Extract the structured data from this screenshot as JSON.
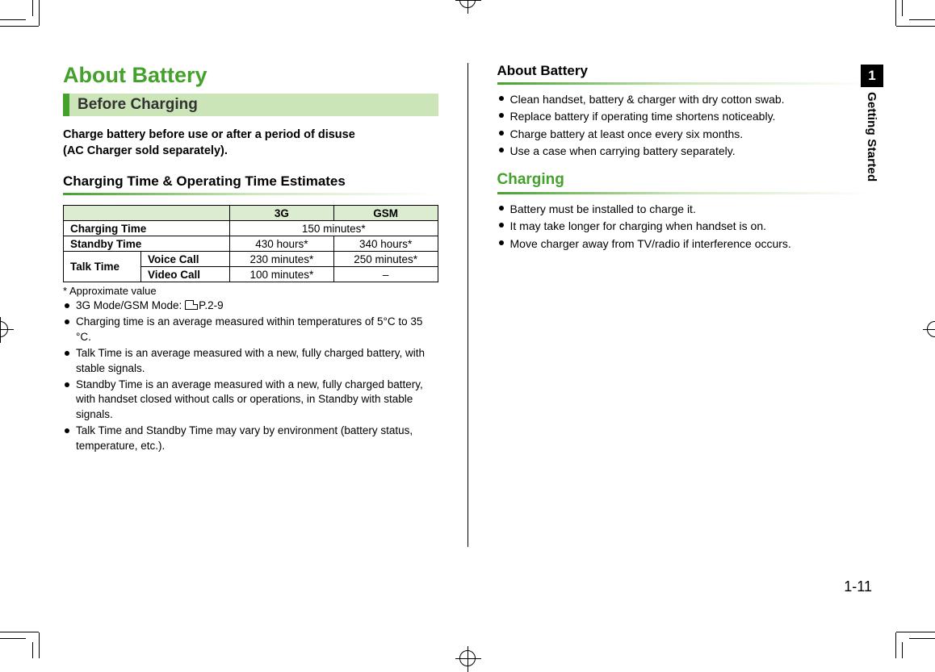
{
  "colors": {
    "accent": "#44a12b",
    "accent_light": "#cce5b8",
    "table_header_bg": "#dcecd0",
    "text": "#000000",
    "background": "#ffffff"
  },
  "sideTab": {
    "number": "1",
    "label": "Getting Started"
  },
  "pageNumber": "1-11",
  "left": {
    "mainTitle": "About Battery",
    "subHead": "Before Charging",
    "introLine1": "Charge battery before use or after a period of disuse",
    "introLine2": "(AC Charger sold separately).",
    "tableTitle": "Charging Time & Operating Time Estimates",
    "table": {
      "colHeaders": [
        "3G",
        "GSM"
      ],
      "rows": {
        "chargingTime": {
          "label": "Charging Time",
          "merged": "150 minutes*"
        },
        "standbyTime": {
          "label": "Standby Time",
          "c3g": "430 hours*",
          "cgsm": "340 hours*"
        },
        "talkTime": {
          "label": "Talk Time",
          "voice": {
            "label": "Voice Call",
            "c3g": "230 minutes*",
            "cgsm": "250 minutes*"
          },
          "video": {
            "label": "Video Call",
            "c3g": "100 minutes*",
            "cgsm": "–"
          }
        }
      }
    },
    "footnote": "* Approximate value",
    "notes": [
      "3G Mode/GSM Mode: __REF__P.2-9",
      "Charging time is an average measured within temperatures of 5°C to 35 °C.",
      "Talk Time is an average measured with a new, fully charged battery, with stable signals.",
      "Standby Time is an average measured with a new, fully charged battery, with handset closed without calls or operations, in Standby with stable signals.",
      "Talk Time and Standby Time may vary by environment (battery status, temperature, etc.)."
    ]
  },
  "right": {
    "section1": {
      "title": "About Battery",
      "items": [
        "Clean handset, battery & charger with dry cotton swab.",
        "Replace battery if operating time shortens noticeably.",
        "Charge battery at least once every six months.",
        "Use a case when carrying battery separately."
      ]
    },
    "section2": {
      "title": "Charging",
      "items": [
        "Battery must be installed to charge it.",
        "It may take longer for charging when handset is on.",
        "Move charger away from TV/radio if interference occurs."
      ]
    }
  }
}
